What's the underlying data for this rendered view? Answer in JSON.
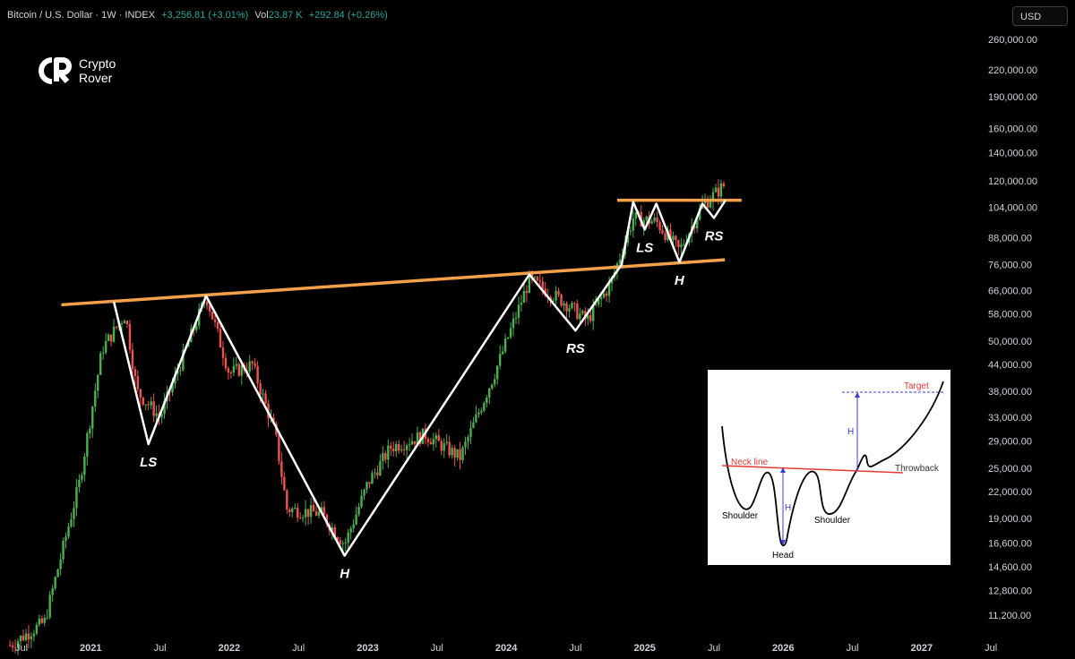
{
  "header": {
    "symbol": "Bitcoin / U.S. Dollar · 1W · INDEX",
    "change": "+3,256.81 (+3.01%)",
    "vol_label": "Vol",
    "vol_value": "23.87 K",
    "vol_change": "+292.84 (+0.26%)"
  },
  "currency_button": "USD",
  "logo": {
    "line1": "Crypto",
    "line2": "Rover"
  },
  "colors": {
    "up": "#26a69a",
    "candle_up": "#4caf50",
    "candle_down": "#ef5350",
    "neckline": "#f5a04a",
    "pattern": "#ffffff",
    "inset_neck": "#e53935",
    "inset_measure": "#3b3bd6"
  },
  "chart_data": {
    "type": "line",
    "y_scale": "log",
    "ylim": [
      10000,
      270000
    ],
    "y_ticks": [
      "260,000.00",
      "220,000.00",
      "190,000.00",
      "160,000.00",
      "140,000.00",
      "120,000.00",
      "104,000.00",
      "88,000.00",
      "76,000.00",
      "66,000.00",
      "58,000.00",
      "50,000.00",
      "44,000.00",
      "38,000.00",
      "33,000.00",
      "29,000.00",
      "25,000.00",
      "22,000.00",
      "19,000.00",
      "16,600.00",
      "14,600.00",
      "12,800.00",
      "11,200.00"
    ],
    "x_ticks": [
      "Jul",
      "2021",
      "Jul",
      "2022",
      "Jul",
      "2023",
      "Jul",
      "2024",
      "Jul",
      "2025",
      "Jul",
      "2026",
      "Jul",
      "2027",
      "Jul"
    ],
    "series": [
      {
        "x": [
          "2020-06",
          "2020-09",
          "2020-12",
          "2021-02",
          "2021-04",
          "2021-05",
          "2021-07",
          "2021-09",
          "2021-11",
          "2022-01",
          "2022-03",
          "2022-05",
          "2022-06",
          "2022-09",
          "2022-11",
          "2023-01",
          "2023-03",
          "2023-06",
          "2023-09",
          "2023-12",
          "2024-03",
          "2024-06",
          "2024-08",
          "2024-10",
          "2024-12",
          "2025-02",
          "2025-04",
          "2025-06",
          "2025-08"
        ],
        "values": [
          9500,
          10800,
          23000,
          48000,
          58000,
          38000,
          33000,
          46000,
          64000,
          42000,
          44000,
          30000,
          20000,
          19500,
          16500,
          23000,
          28000,
          30000,
          26500,
          42000,
          70000,
          62000,
          56000,
          68000,
          98000,
          96000,
          82000,
          105000,
          118000
        ]
      }
    ],
    "neckline": {
      "from": [
        "2020-12",
        61000
      ],
      "to": [
        "2025-06",
        78000
      ]
    },
    "upper_neckline": {
      "from": [
        "2024-11",
        108000
      ],
      "to": [
        "2025-09",
        108000
      ]
    },
    "pattern_points": [
      {
        "x": "2021-03",
        "y": 62000
      },
      {
        "x": "2021-06",
        "y": 28500,
        "label": "LS"
      },
      {
        "x": "2021-11",
        "y": 64000
      },
      {
        "x": "2022-11",
        "y": 15500,
        "label": "H"
      },
      {
        "x": "2024-03",
        "y": 72000
      },
      {
        "x": "2024-07",
        "y": 53000,
        "label": "RS"
      },
      {
        "x": "2024-11",
        "y": 76000
      },
      {
        "x": "2024-12",
        "y": 107000
      },
      {
        "x": "2025-01",
        "y": 92000,
        "label": "LS"
      },
      {
        "x": "2025-02",
        "y": 106000
      },
      {
        "x": "2025-04",
        "y": 77000,
        "label": "H"
      },
      {
        "x": "2025-06",
        "y": 106000
      },
      {
        "x": "2025-07",
        "y": 98000,
        "label": "RS"
      },
      {
        "x": "2025-08",
        "y": 108000
      }
    ]
  },
  "inset": {
    "labels": {
      "target": "Target",
      "h_upper": "H",
      "neck_line": "Neck line",
      "throwback": "Throwback",
      "shoulder_left": "Shoulder",
      "h_lower": "H",
      "shoulder_right": "Shoulder",
      "head": "Head"
    }
  }
}
